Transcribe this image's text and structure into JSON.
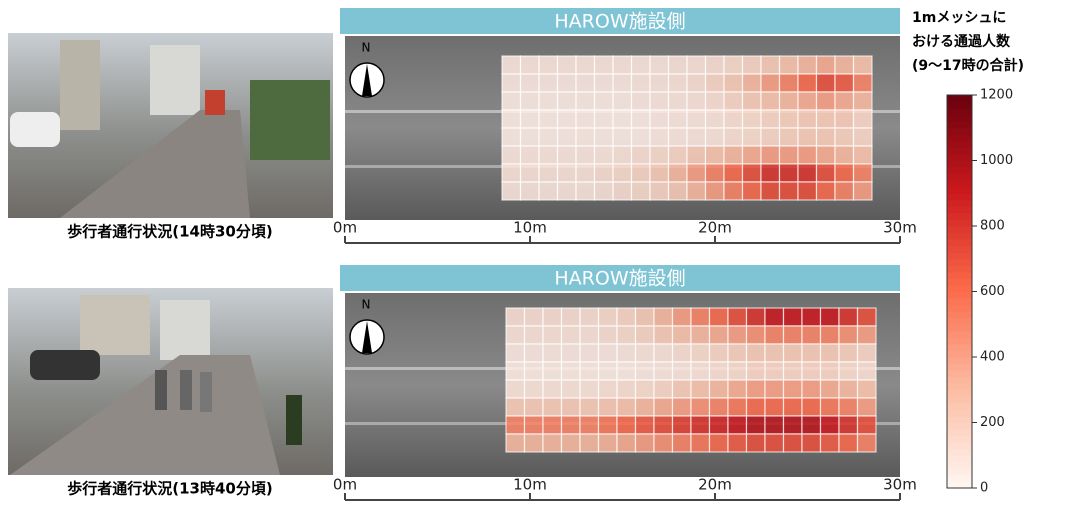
{
  "panels": [
    {
      "photo_caption": "歩行者通行状況(14時30分頃)",
      "map": {
        "header": "HAROW施設側",
        "north": "N",
        "scale_labels": [
          "0m",
          "10m",
          "20m",
          "30m"
        ],
        "mesh_counts": [
          [
            60,
            60,
            60,
            60,
            60,
            60,
            60,
            60,
            60,
            80,
            80,
            100,
            120,
            150,
            200,
            250,
            300,
            350,
            300,
            250
          ],
          [
            50,
            50,
            50,
            50,
            50,
            50,
            50,
            60,
            70,
            80,
            100,
            150,
            200,
            300,
            400,
            500,
            600,
            700,
            650,
            500
          ],
          [
            40,
            40,
            40,
            40,
            40,
            40,
            40,
            50,
            60,
            70,
            80,
            100,
            150,
            200,
            250,
            300,
            350,
            400,
            350,
            300
          ],
          [
            40,
            40,
            40,
            40,
            40,
            40,
            40,
            40,
            50,
            60,
            70,
            80,
            100,
            120,
            150,
            180,
            200,
            200,
            200,
            150
          ],
          [
            40,
            40,
            40,
            40,
            40,
            40,
            40,
            40,
            50,
            60,
            70,
            80,
            100,
            120,
            150,
            180,
            200,
            200,
            180,
            150
          ],
          [
            60,
            60,
            60,
            60,
            60,
            60,
            80,
            100,
            120,
            150,
            200,
            250,
            300,
            350,
            400,
            400,
            400,
            350,
            300,
            250
          ],
          [
            80,
            80,
            80,
            80,
            80,
            100,
            120,
            150,
            200,
            300,
            400,
            500,
            600,
            700,
            800,
            800,
            800,
            700,
            600,
            500
          ],
          [
            60,
            60,
            60,
            60,
            60,
            80,
            100,
            120,
            150,
            200,
            300,
            400,
            500,
            600,
            700,
            700,
            700,
            600,
            500,
            400
          ]
        ]
      }
    },
    {
      "photo_caption": "歩行者通行状況(13時40分頃)",
      "map": {
        "header": "HAROW施設側",
        "north": "N",
        "scale_labels": [
          "0m",
          "10m",
          "20m",
          "30m"
        ],
        "mesh_counts": [
          [
            100,
            100,
            100,
            100,
            100,
            120,
            150,
            200,
            300,
            400,
            500,
            600,
            700,
            800,
            900,
            900,
            900,
            900,
            800,
            700
          ],
          [
            80,
            80,
            80,
            80,
            80,
            100,
            120,
            150,
            200,
            250,
            300,
            350,
            400,
            450,
            500,
            500,
            500,
            500,
            450,
            400
          ],
          [
            50,
            50,
            50,
            50,
            50,
            50,
            60,
            70,
            80,
            100,
            120,
            150,
            180,
            200,
            200,
            200,
            200,
            200,
            180,
            150
          ],
          [
            40,
            40,
            40,
            40,
            40,
            40,
            40,
            50,
            60,
            70,
            80,
            100,
            120,
            150,
            150,
            150,
            150,
            150,
            120,
            100
          ],
          [
            80,
            80,
            80,
            80,
            80,
            90,
            100,
            120,
            150,
            200,
            250,
            300,
            350,
            400,
            400,
            400,
            400,
            350,
            300,
            250
          ],
          [
            200,
            200,
            200,
            200,
            200,
            220,
            250,
            300,
            350,
            400,
            450,
            500,
            550,
            600,
            600,
            600,
            600,
            550,
            500,
            400
          ],
          [
            500,
            500,
            500,
            500,
            500,
            550,
            600,
            650,
            700,
            750,
            800,
            850,
            900,
            950,
            950,
            950,
            950,
            900,
            800,
            700
          ],
          [
            300,
            300,
            300,
            300,
            300,
            320,
            350,
            400,
            450,
            500,
            550,
            600,
            650,
            700,
            700,
            700,
            700,
            650,
            600,
            500
          ]
        ]
      }
    }
  ],
  "colorbar": {
    "title": [
      "1mメッシュに",
      "おける通過人数",
      "(9～17時の合計)"
    ],
    "lim": [
      0,
      1200
    ],
    "ticks": [
      0,
      200,
      400,
      600,
      800,
      1000,
      1200
    ],
    "colors": [
      "#fff5f0",
      "#fcbba1",
      "#fb6a4a",
      "#cb181d",
      "#67000d"
    ]
  }
}
